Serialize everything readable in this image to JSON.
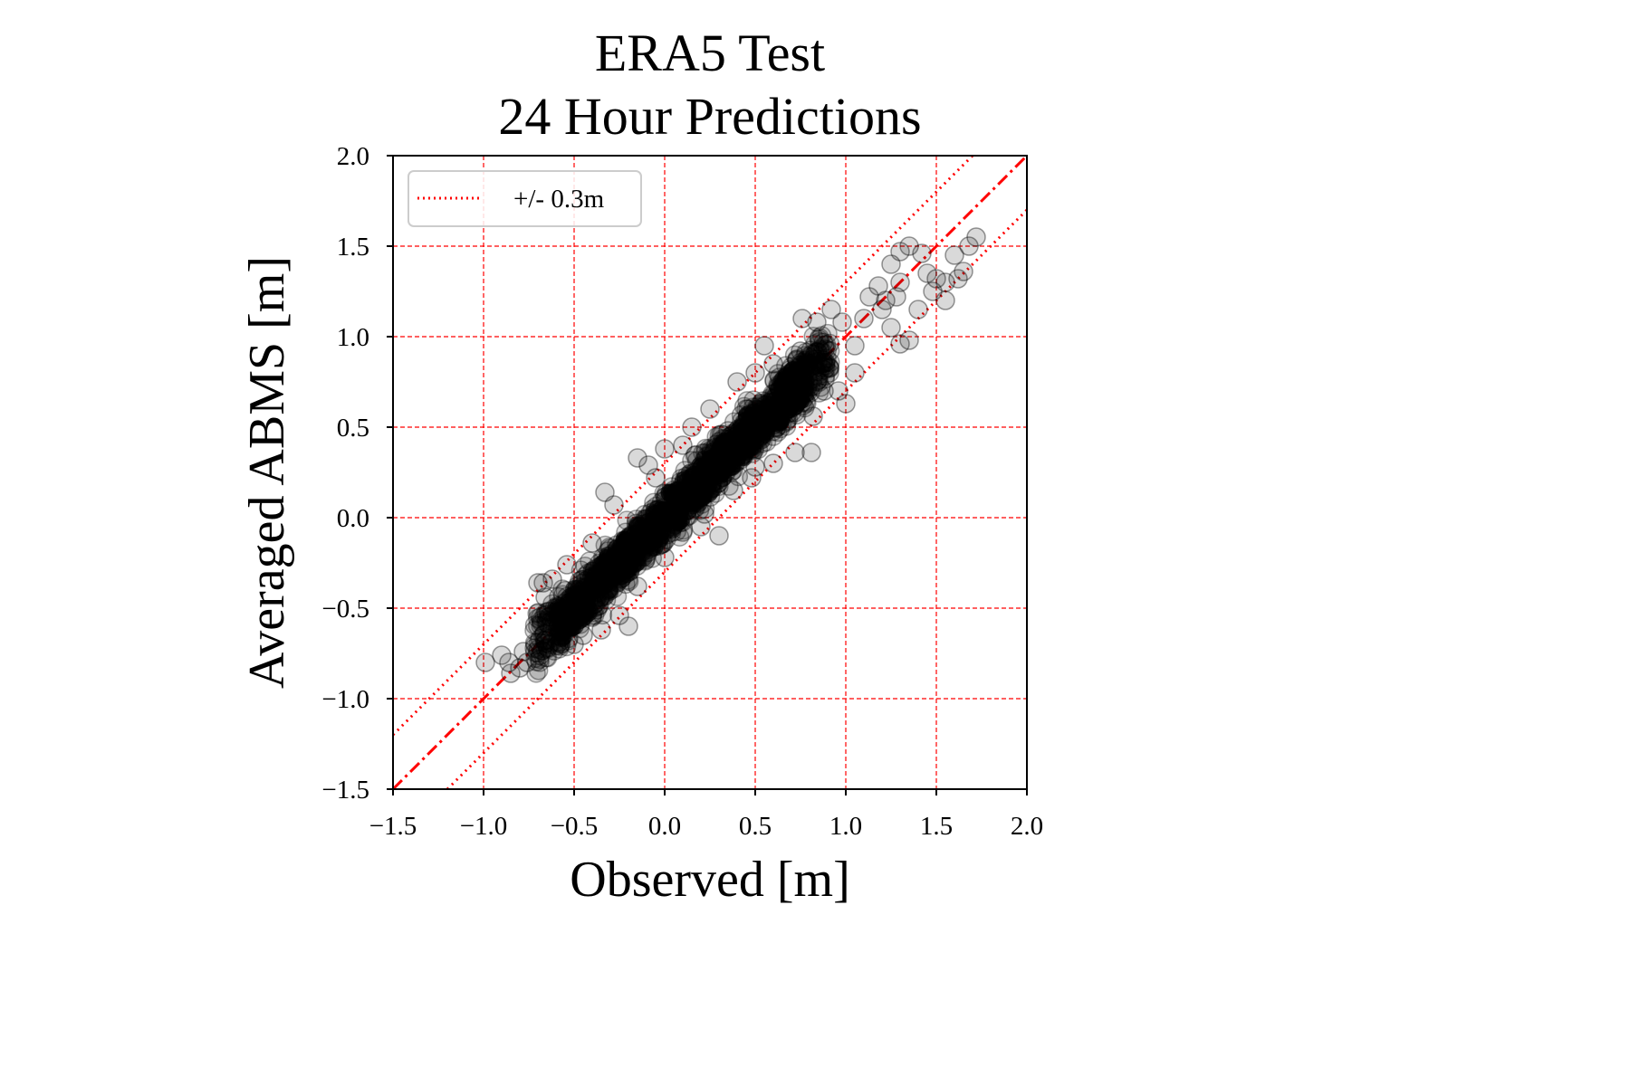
{
  "chart_data": {
    "type": "scatter",
    "title_lines": [
      "ERA5 Test",
      "24 Hour Predictions"
    ],
    "xlabel": "Observed [m]",
    "ylabel": "Averaged ABMS [m]",
    "xlim": [
      -1.5,
      2.0
    ],
    "ylim": [
      -1.5,
      2.0
    ],
    "xticks": [
      -1.5,
      -1.0,
      -0.5,
      0.0,
      0.5,
      1.0,
      1.5,
      2.0
    ],
    "yticks": [
      -1.5,
      -1.0,
      -0.5,
      0.0,
      0.5,
      1.0,
      1.5,
      2.0
    ],
    "xtick_labels": [
      "−1.5",
      "−1.0",
      "−0.5",
      "0.0",
      "0.5",
      "1.0",
      "1.5",
      "2.0"
    ],
    "ytick_labels": [
      "−1.5",
      "−1.0",
      "−0.5",
      "0.0",
      "0.5",
      "1.0",
      "1.5",
      "2.0"
    ],
    "grid": true,
    "grid_color": "#ff0000",
    "marker_color": "#000000",
    "marker_alpha": 0.15,
    "lines": [
      {
        "kind": "identity",
        "style": "dashdot",
        "color": "#ff0000",
        "offset": 0.0
      },
      {
        "kind": "band",
        "style": "dotted",
        "color": "#ff0000",
        "offset": 0.3
      },
      {
        "kind": "band",
        "style": "dotted",
        "color": "#ff0000",
        "offset": -0.3
      }
    ],
    "legend": {
      "position": "top-left",
      "entries": [
        {
          "label": "+/- 0.3m",
          "style": "dotted",
          "color": "#ff0000"
        }
      ]
    },
    "series": [
      {
        "marker": "circle",
        "points": [
          [
            -0.99,
            -0.8
          ],
          [
            -0.85,
            -0.86
          ],
          [
            -0.9,
            -0.76
          ],
          [
            -0.8,
            -0.83
          ],
          [
            -0.86,
            -0.8
          ],
          [
            -0.78,
            -0.74
          ],
          [
            -0.76,
            -0.8
          ],
          [
            -0.7,
            -0.36
          ],
          [
            -0.67,
            -0.36
          ],
          [
            -0.62,
            -0.34
          ],
          [
            -0.66,
            -0.44
          ],
          [
            -0.6,
            -0.52
          ],
          [
            -0.68,
            -0.58
          ],
          [
            -0.54,
            -0.26
          ],
          [
            -0.4,
            -0.14
          ],
          [
            -0.33,
            0.14
          ],
          [
            -0.28,
            0.07
          ],
          [
            -0.15,
            0.33
          ],
          [
            -0.09,
            0.29
          ],
          [
            -0.35,
            -0.62
          ],
          [
            -0.2,
            -0.6
          ],
          [
            -0.25,
            -0.54
          ],
          [
            -0.15,
            -0.38
          ],
          [
            0.0,
            -0.22
          ],
          [
            0.1,
            -0.08
          ],
          [
            0.05,
            0.03
          ],
          [
            0.2,
            -0.05
          ],
          [
            0.15,
            0.5
          ],
          [
            0.3,
            0.42
          ],
          [
            0.35,
            0.48
          ],
          [
            0.45,
            0.6
          ],
          [
            0.3,
            -0.1
          ],
          [
            0.22,
            0.02
          ],
          [
            0.48,
            0.22
          ],
          [
            0.5,
            0.28
          ],
          [
            0.62,
            0.5
          ],
          [
            0.72,
            0.62
          ],
          [
            0.72,
            0.36
          ],
          [
            0.81,
            0.36
          ],
          [
            0.82,
            0.56
          ],
          [
            0.75,
            0.92
          ],
          [
            0.76,
            1.1
          ],
          [
            0.84,
            1.08
          ],
          [
            0.92,
            1.15
          ],
          [
            0.98,
            1.08
          ],
          [
            0.96,
            0.7
          ],
          [
            1.0,
            0.63
          ],
          [
            1.05,
            0.8
          ],
          [
            1.05,
            0.95
          ],
          [
            1.1,
            1.1
          ],
          [
            1.13,
            1.22
          ],
          [
            1.18,
            1.28
          ],
          [
            1.2,
            1.15
          ],
          [
            1.25,
            1.05
          ],
          [
            1.3,
            0.96
          ],
          [
            1.35,
            0.98
          ],
          [
            1.22,
            1.2
          ],
          [
            1.28,
            1.22
          ],
          [
            1.3,
            1.3
          ],
          [
            1.3,
            1.47
          ],
          [
            1.35,
            1.5
          ],
          [
            1.42,
            1.46
          ],
          [
            1.25,
            1.4
          ],
          [
            1.45,
            1.35
          ],
          [
            1.5,
            1.32
          ],
          [
            1.6,
            1.45
          ],
          [
            1.62,
            1.32
          ],
          [
            1.65,
            1.36
          ],
          [
            1.68,
            1.5
          ],
          [
            1.72,
            1.55
          ],
          [
            1.55,
            1.3
          ],
          [
            1.55,
            1.2
          ],
          [
            1.48,
            1.25
          ],
          [
            1.4,
            1.15
          ],
          [
            -0.5,
            -0.7
          ],
          [
            -0.45,
            -0.65
          ],
          [
            -0.4,
            -0.55
          ],
          [
            -0.55,
            -0.6
          ],
          [
            -0.3,
            -0.3
          ],
          [
            0.0,
            0.38
          ],
          [
            0.1,
            0.4
          ],
          [
            -0.05,
            0.22
          ],
          [
            0.4,
            0.75
          ],
          [
            0.5,
            0.8
          ],
          [
            0.6,
            0.85
          ],
          [
            0.55,
            0.95
          ],
          [
            0.25,
            0.6
          ],
          [
            0.38,
            0.15
          ],
          [
            0.6,
            0.3
          ],
          [
            0.88,
            0.7
          ]
        ],
        "density_band": {
          "x_from": -0.72,
          "x_to": 0.92,
          "width": 0.2
        }
      }
    ]
  }
}
